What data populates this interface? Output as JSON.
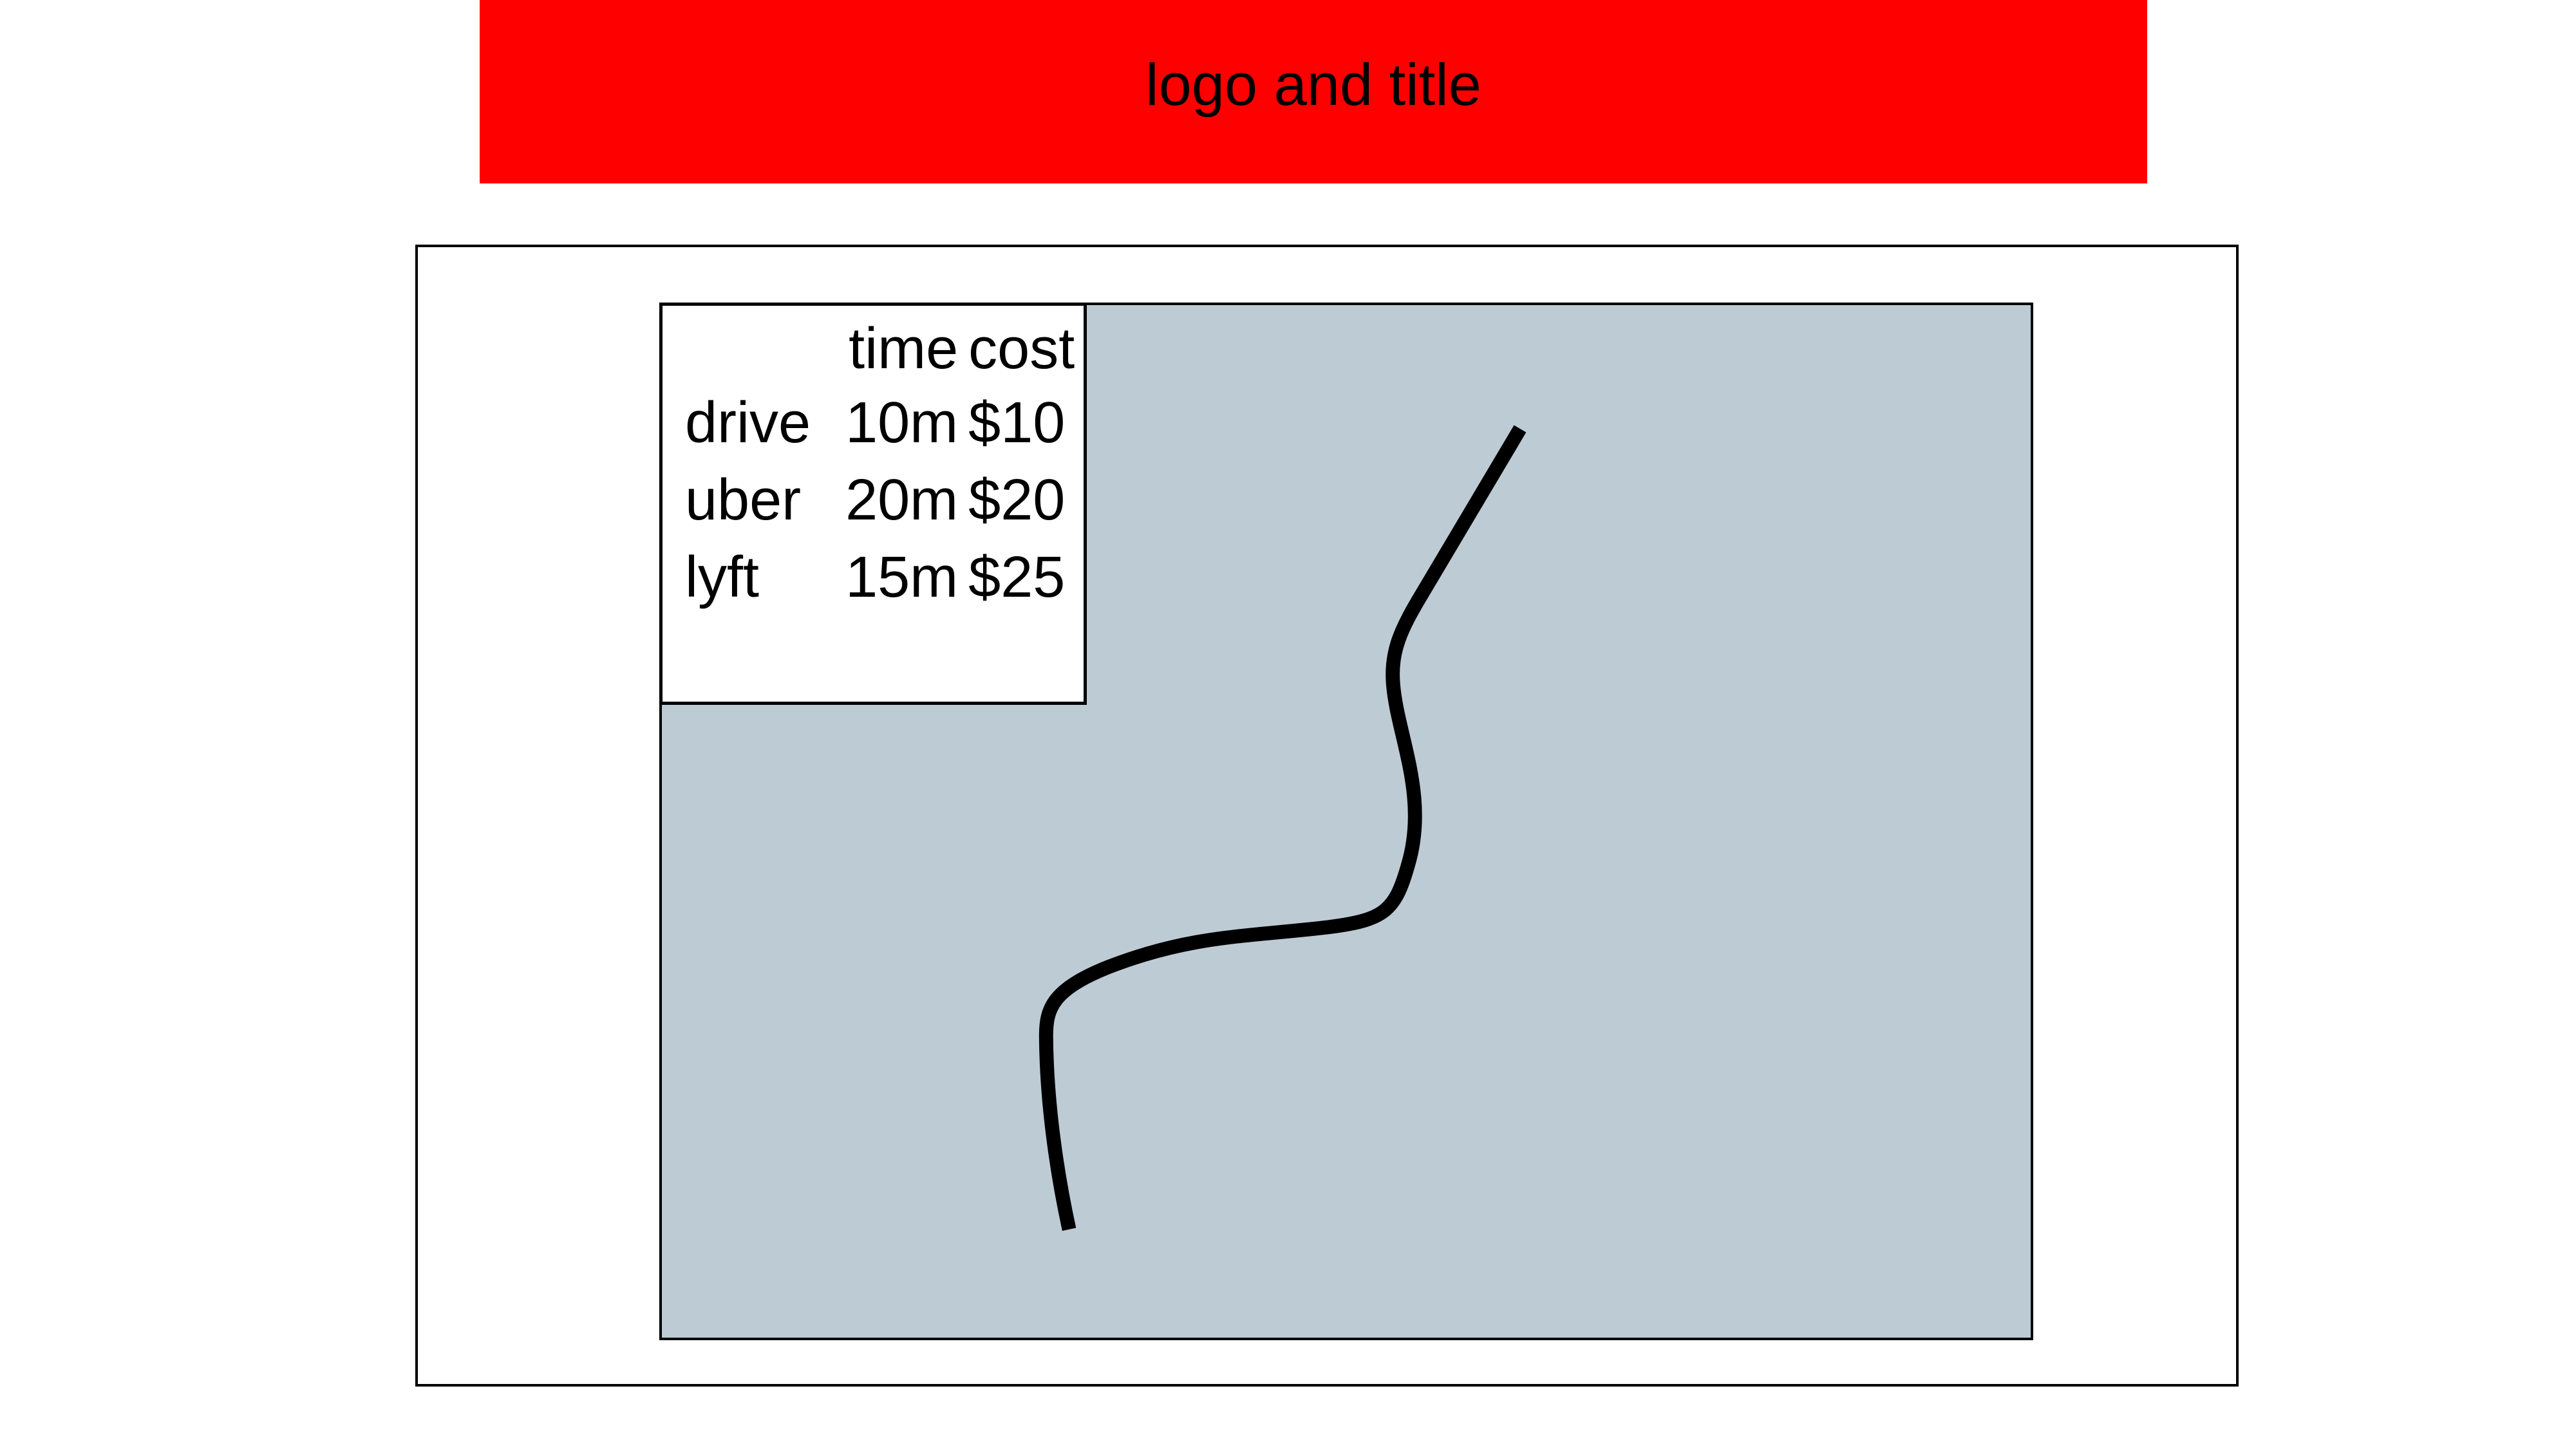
{
  "header": {
    "title": "logo and title",
    "background": "#ff0000"
  },
  "map": {
    "background": "#bdcbd4",
    "route_color": "#000000"
  },
  "options": {
    "columns": {
      "mode": "",
      "time": "time",
      "cost": "cost"
    },
    "rows": [
      {
        "mode": "drive",
        "time": "10m",
        "cost": "$10"
      },
      {
        "mode": "uber",
        "time": "20m",
        "cost": "$20"
      },
      {
        "mode": "lyft",
        "time": "15m",
        "cost": "$25"
      }
    ]
  }
}
